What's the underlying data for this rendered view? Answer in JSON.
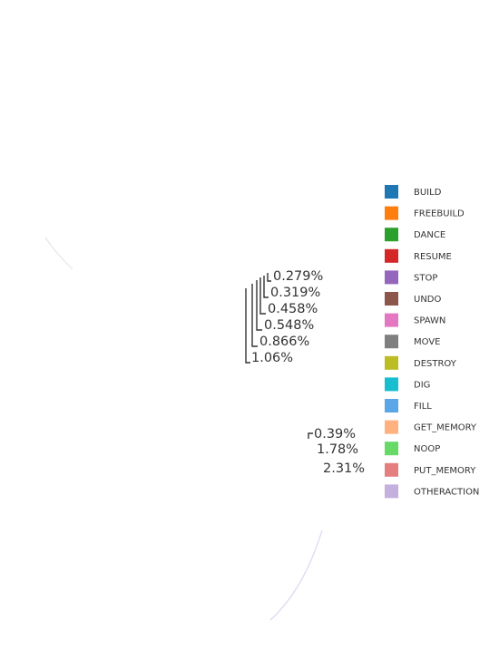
{
  "chart_data": {
    "type": "pie",
    "title": "",
    "legend_position": "right",
    "labels": [
      "BUILD",
      "FREEBUILD",
      "DANCE",
      "RESUME",
      "STOP",
      "UNDO",
      "SPAWN",
      "MOVE",
      "DESTROY",
      "DIG",
      "FILL",
      "GET_MEMORY",
      "NOOP",
      "PUT_MEMORY",
      "OTHERACTION"
    ],
    "colors": [
      "#1f77b4",
      "#ff7f0e",
      "#2ca02c",
      "#d62728",
      "#9467bd",
      "#8c564b",
      "#e377c2",
      "#7f7f7f",
      "#bcbd22",
      "#17becf",
      "#5aa6e6",
      "#ffb27f",
      "#66d966",
      "#e57f7f",
      "#c4b0dd"
    ],
    "visible_percent_labels": [
      "0.279%",
      "0.319%",
      "0.458%",
      "0.548%",
      "0.866%",
      "1.06%",
      "0.39%",
      "1.78%",
      "2.31%"
    ]
  }
}
